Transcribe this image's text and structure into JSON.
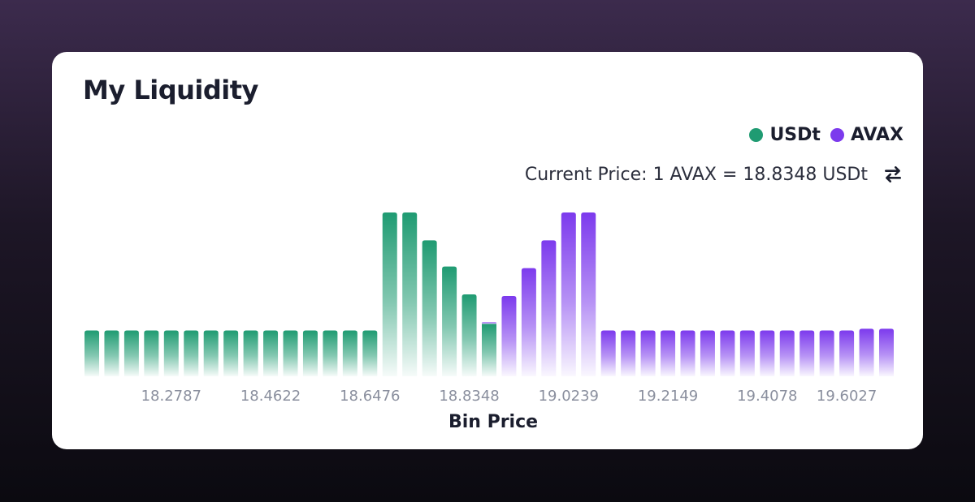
{
  "card": {
    "title": "My Liquidity",
    "current_price_text": "Current Price: 1 AVAX = 18.8348 USDt",
    "swap_icon": "swap-arrows-icon"
  },
  "colors": {
    "usdt": "#1f9b72",
    "avax": "#7c3aed"
  },
  "chart_data": {
    "type": "bar",
    "title": "My Liquidity",
    "xlabel": "Bin Price",
    "ylabel": "",
    "legend": [
      "USDt",
      "AVAX"
    ],
    "legend_position": "top-right",
    "grid": false,
    "ylim": [
      0,
      100
    ],
    "x_tick_labels": [
      "18.2787",
      "18.4622",
      "18.6476",
      "18.8348",
      "19.0239",
      "19.2149",
      "19.4078",
      "19.6027"
    ],
    "x_tick_bins": [
      4,
      9,
      14,
      19,
      24,
      29,
      34,
      38
    ],
    "series": [
      {
        "name": "USDt",
        "values": [
          28,
          28,
          28,
          28,
          28,
          28,
          28,
          28,
          28,
          28,
          28,
          28,
          28,
          28,
          28,
          100,
          100,
          83,
          67,
          50,
          32,
          0,
          0,
          0,
          0,
          0,
          0,
          0,
          0,
          0,
          0,
          0,
          0,
          0,
          0,
          0,
          0,
          0,
          0,
          0,
          0
        ]
      },
      {
        "name": "AVAX",
        "values": [
          0,
          0,
          0,
          0,
          0,
          0,
          0,
          0,
          0,
          0,
          0,
          0,
          0,
          0,
          0,
          0,
          0,
          0,
          0,
          0,
          1,
          49,
          66,
          83,
          100,
          100,
          28,
          28,
          28,
          28,
          28,
          28,
          28,
          28,
          28,
          28,
          28,
          28,
          28,
          29,
          29
        ]
      }
    ]
  }
}
